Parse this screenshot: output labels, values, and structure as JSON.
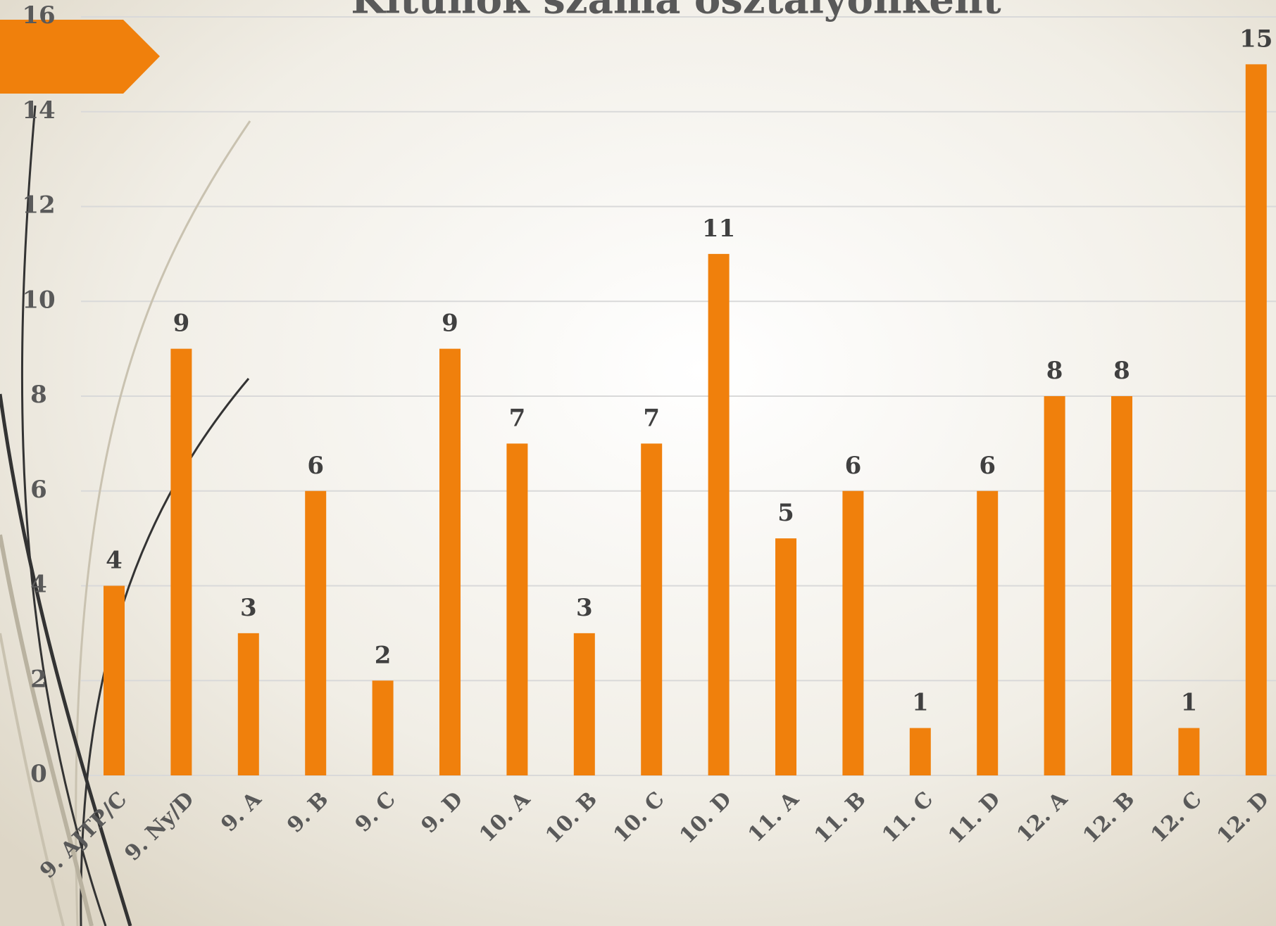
{
  "chart_data": {
    "type": "bar",
    "title": "Kitűnők száma osztályonként",
    "categories": [
      "9. AJTP/C",
      "9. Ny/D",
      "9. A",
      "9. B",
      "9. C",
      "9. D",
      "10. A",
      "10. B",
      "10. C",
      "10. D",
      "11. A",
      "11. B",
      "11. C",
      "11. D",
      "12. A",
      "12. B",
      "12. C",
      "12. D"
    ],
    "values": [
      4,
      9,
      3,
      6,
      2,
      9,
      7,
      3,
      7,
      11,
      5,
      6,
      1,
      6,
      8,
      8,
      1,
      15
    ],
    "color": "#f0800c",
    "ylim": [
      0,
      16
    ],
    "yticks": [
      0,
      2,
      4,
      6,
      8,
      10,
      12,
      14,
      16
    ],
    "grid": true
  }
}
